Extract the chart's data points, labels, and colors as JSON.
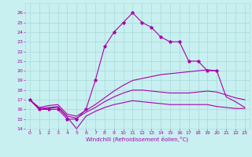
{
  "xlabel": "Windchill (Refroidissement éolien,°C)",
  "background_color": "#c8f0f0",
  "grid_color": "#b0dede",
  "line_color": "#aa00aa",
  "xlim": [
    -0.5,
    23.5
  ],
  "ylim": [
    14,
    27
  ],
  "xticks": [
    0,
    1,
    2,
    3,
    4,
    5,
    6,
    7,
    8,
    9,
    10,
    11,
    12,
    13,
    14,
    15,
    16,
    17,
    18,
    19,
    20,
    21,
    22,
    23
  ],
  "yticks": [
    14,
    15,
    16,
    17,
    18,
    19,
    20,
    21,
    22,
    23,
    24,
    25,
    26
  ],
  "line1_x": [
    0,
    1,
    2,
    3,
    4,
    5,
    6,
    7,
    8,
    9,
    10,
    11,
    12,
    13,
    14,
    15,
    16,
    17,
    18,
    19,
    20
  ],
  "line1_y": [
    17.0,
    16.0,
    16.0,
    16.0,
    15.0,
    15.0,
    16.0,
    19.0,
    22.5,
    24.0,
    25.0,
    26.0,
    25.0,
    24.5,
    23.5,
    23.0,
    23.0,
    21.0,
    21.0,
    20.0,
    20.0
  ],
  "line2_x": [
    0,
    1,
    2,
    3,
    4,
    5,
    6,
    7,
    8,
    9,
    10,
    11,
    12,
    13,
    14,
    15,
    16,
    17,
    18,
    19,
    20,
    21,
    22,
    23
  ],
  "line2_y": [
    17.0,
    16.0,
    16.1,
    16.2,
    15.2,
    14.0,
    15.3,
    15.8,
    16.2,
    16.5,
    16.7,
    16.9,
    16.8,
    16.7,
    16.6,
    16.5,
    16.5,
    16.5,
    16.5,
    16.5,
    16.3,
    16.2,
    16.1,
    16.1
  ],
  "line3_x": [
    0,
    1,
    2,
    3,
    4,
    5,
    6,
    7,
    8,
    9,
    10,
    11,
    12,
    13,
    14,
    15,
    16,
    17,
    18,
    19,
    20,
    21,
    22,
    23
  ],
  "line3_y": [
    17.0,
    16.1,
    16.2,
    16.3,
    15.3,
    15.1,
    15.7,
    16.2,
    16.8,
    17.3,
    17.7,
    18.0,
    18.0,
    17.9,
    17.8,
    17.7,
    17.7,
    17.7,
    17.8,
    17.9,
    17.8,
    17.5,
    17.2,
    17.0
  ],
  "line4_x": [
    0,
    1,
    2,
    3,
    4,
    5,
    6,
    7,
    8,
    9,
    10,
    11,
    12,
    13,
    14,
    15,
    16,
    17,
    18,
    19,
    20,
    21,
    22,
    23
  ],
  "line4_y": [
    17.0,
    16.2,
    16.4,
    16.5,
    15.5,
    15.3,
    15.9,
    16.5,
    17.2,
    17.9,
    18.5,
    19.0,
    19.2,
    19.4,
    19.6,
    19.7,
    19.8,
    19.9,
    20.0,
    20.1,
    20.0,
    17.3,
    16.8,
    16.2
  ]
}
